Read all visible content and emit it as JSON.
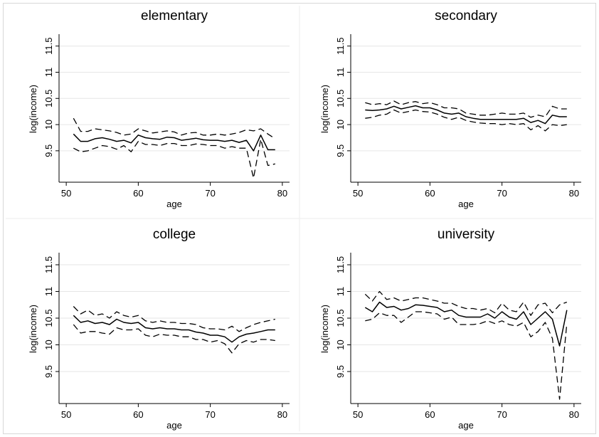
{
  "chart_data": [
    {
      "type": "line",
      "title": "elementary",
      "xlabel": "age",
      "ylabel": "log(income)",
      "xlim": [
        49,
        81
      ],
      "ylim": [
        8.9,
        11.7
      ],
      "xticks": [
        "50",
        "60",
        "70",
        "80"
      ],
      "yticks": [
        "9.5",
        "10",
        "10.5",
        "11",
        "11.5"
      ],
      "grid": true,
      "x": [
        51,
        52,
        53,
        54,
        55,
        56,
        57,
        58,
        59,
        60,
        61,
        62,
        63,
        64,
        65,
        66,
        67,
        68,
        69,
        70,
        71,
        72,
        73,
        74,
        75,
        76,
        77,
        78,
        79
      ],
      "series": [
        {
          "style": "dashed",
          "values": [
            10.12,
            9.87,
            9.87,
            9.92,
            9.9,
            9.88,
            9.85,
            9.8,
            9.82,
            9.92,
            9.88,
            9.84,
            9.86,
            9.88,
            9.86,
            9.8,
            9.84,
            9.85,
            9.8,
            9.8,
            9.82,
            9.8,
            9.82,
            9.85,
            9.9,
            9.88,
            9.92,
            9.82,
            9.73
          ]
        },
        {
          "style": "solid",
          "values": [
            9.82,
            9.68,
            9.68,
            9.73,
            9.75,
            9.72,
            9.68,
            9.7,
            9.65,
            9.8,
            9.75,
            9.73,
            9.72,
            9.76,
            9.75,
            9.7,
            9.72,
            9.74,
            9.71,
            9.7,
            9.7,
            9.68,
            9.7,
            9.66,
            9.7,
            9.5,
            9.8,
            9.52,
            9.52
          ]
        },
        {
          "style": "dashed",
          "values": [
            9.55,
            9.48,
            9.5,
            9.55,
            9.6,
            9.58,
            9.53,
            9.6,
            9.48,
            9.68,
            9.62,
            9.62,
            9.6,
            9.64,
            9.64,
            9.6,
            9.6,
            9.63,
            9.62,
            9.6,
            9.6,
            9.55,
            9.58,
            9.55,
            9.55,
            8.98,
            9.72,
            9.22,
            9.25
          ]
        }
      ]
    },
    {
      "type": "line",
      "title": "secondary",
      "xlabel": "age",
      "ylabel": "log(income)",
      "xlim": [
        49,
        81
      ],
      "ylim": [
        8.9,
        11.7
      ],
      "xticks": [
        "50",
        "60",
        "70",
        "80"
      ],
      "yticks": [
        "9.5",
        "10",
        "10.5",
        "11",
        "11.5"
      ],
      "grid": true,
      "x": [
        51,
        52,
        53,
        54,
        55,
        56,
        57,
        58,
        59,
        60,
        61,
        62,
        63,
        64,
        65,
        66,
        67,
        68,
        69,
        70,
        71,
        72,
        73,
        74,
        75,
        76,
        77,
        78,
        79
      ],
      "series": [
        {
          "style": "dashed",
          "values": [
            10.42,
            10.38,
            10.4,
            10.38,
            10.45,
            10.38,
            10.42,
            10.44,
            10.4,
            10.42,
            10.38,
            10.32,
            10.32,
            10.3,
            10.22,
            10.2,
            10.18,
            10.18,
            10.2,
            10.22,
            10.2,
            10.2,
            10.22,
            10.14,
            10.18,
            10.15,
            10.35,
            10.3,
            10.3
          ]
        },
        {
          "style": "solid",
          "values": [
            10.28,
            10.27,
            10.28,
            10.3,
            10.35,
            10.3,
            10.33,
            10.36,
            10.32,
            10.32,
            10.28,
            10.22,
            10.2,
            10.22,
            10.15,
            10.12,
            10.1,
            10.1,
            10.1,
            10.1,
            10.1,
            10.1,
            10.12,
            10.04,
            10.08,
            10.02,
            10.18,
            10.15,
            10.15
          ]
        },
        {
          "style": "dashed",
          "values": [
            10.12,
            10.14,
            10.18,
            10.2,
            10.28,
            10.22,
            10.25,
            10.28,
            10.25,
            10.24,
            10.2,
            10.14,
            10.1,
            10.14,
            10.08,
            10.05,
            10.03,
            10.02,
            10.02,
            10.0,
            10.02,
            10.0,
            10.02,
            9.9,
            9.98,
            9.88,
            10.0,
            9.98,
            10.0
          ]
        }
      ]
    },
    {
      "type": "line",
      "title": "college",
      "xlabel": "age",
      "ylabel": "log(income)",
      "xlim": [
        49,
        81
      ],
      "ylim": [
        8.9,
        11.7
      ],
      "xticks": [
        "50",
        "60",
        "70",
        "80"
      ],
      "yticks": [
        "9.5",
        "10",
        "10.5",
        "11",
        "11.5"
      ],
      "grid": true,
      "x": [
        51,
        52,
        53,
        54,
        55,
        56,
        57,
        58,
        59,
        60,
        61,
        62,
        63,
        64,
        65,
        66,
        67,
        68,
        69,
        70,
        71,
        72,
        73,
        74,
        75,
        76,
        77,
        78,
        79
      ],
      "series": [
        {
          "style": "dashed",
          "values": [
            10.72,
            10.58,
            10.65,
            10.55,
            10.58,
            10.5,
            10.62,
            10.55,
            10.52,
            10.55,
            10.45,
            10.42,
            10.45,
            10.42,
            10.42,
            10.4,
            10.4,
            10.38,
            10.32,
            10.3,
            10.3,
            10.28,
            10.35,
            10.25,
            10.32,
            10.38,
            10.42,
            10.45,
            10.48
          ]
        },
        {
          "style": "solid",
          "values": [
            10.55,
            10.42,
            10.45,
            10.4,
            10.42,
            10.38,
            10.48,
            10.42,
            10.4,
            10.42,
            10.32,
            10.3,
            10.32,
            10.3,
            10.3,
            10.28,
            10.28,
            10.24,
            10.22,
            10.18,
            10.18,
            10.15,
            10.05,
            10.15,
            10.2,
            10.22,
            10.25,
            10.28,
            10.28
          ]
        },
        {
          "style": "dashed",
          "values": [
            10.38,
            10.22,
            10.25,
            10.25,
            10.22,
            10.2,
            10.32,
            10.28,
            10.28,
            10.3,
            10.18,
            10.15,
            10.2,
            10.18,
            10.18,
            10.15,
            10.15,
            10.1,
            10.1,
            10.05,
            10.08,
            10.02,
            9.85,
            10.02,
            10.08,
            10.05,
            10.1,
            10.1,
            10.08
          ]
        }
      ]
    },
    {
      "type": "line",
      "title": "university",
      "xlabel": "age",
      "ylabel": "log(income)",
      "xlim": [
        49,
        81
      ],
      "ylim": [
        8.9,
        11.7
      ],
      "xticks": [
        "50",
        "60",
        "70",
        "80"
      ],
      "yticks": [
        "9.5",
        "10",
        "10.5",
        "11",
        "11.5"
      ],
      "grid": true,
      "x": [
        51,
        52,
        53,
        54,
        55,
        56,
        57,
        58,
        59,
        60,
        61,
        62,
        63,
        64,
        65,
        66,
        67,
        68,
        69,
        70,
        71,
        72,
        73,
        74,
        75,
        76,
        77,
        78,
        79
      ],
      "series": [
        {
          "style": "dashed",
          "values": [
            10.95,
            10.82,
            11.0,
            10.85,
            10.88,
            10.82,
            10.85,
            10.88,
            10.88,
            10.85,
            10.82,
            10.78,
            10.78,
            10.72,
            10.68,
            10.68,
            10.65,
            10.68,
            10.6,
            10.78,
            10.65,
            10.62,
            10.8,
            10.55,
            10.75,
            10.78,
            10.6,
            10.75,
            10.8
          ]
        },
        {
          "style": "solid",
          "values": [
            10.7,
            10.62,
            10.8,
            10.7,
            10.72,
            10.65,
            10.68,
            10.75,
            10.74,
            10.72,
            10.7,
            10.62,
            10.65,
            10.55,
            10.52,
            10.52,
            10.52,
            10.58,
            10.5,
            10.62,
            10.52,
            10.48,
            10.62,
            10.38,
            10.5,
            10.62,
            10.48,
            9.98,
            10.65
          ]
        },
        {
          "style": "dashed",
          "values": [
            10.45,
            10.48,
            10.6,
            10.55,
            10.55,
            10.42,
            10.52,
            10.62,
            10.62,
            10.6,
            10.58,
            10.48,
            10.52,
            10.38,
            10.38,
            10.38,
            10.4,
            10.45,
            10.4,
            10.45,
            10.38,
            10.35,
            10.42,
            10.15,
            10.25,
            10.42,
            10.12,
            8.98,
            10.4
          ]
        }
      ]
    }
  ]
}
